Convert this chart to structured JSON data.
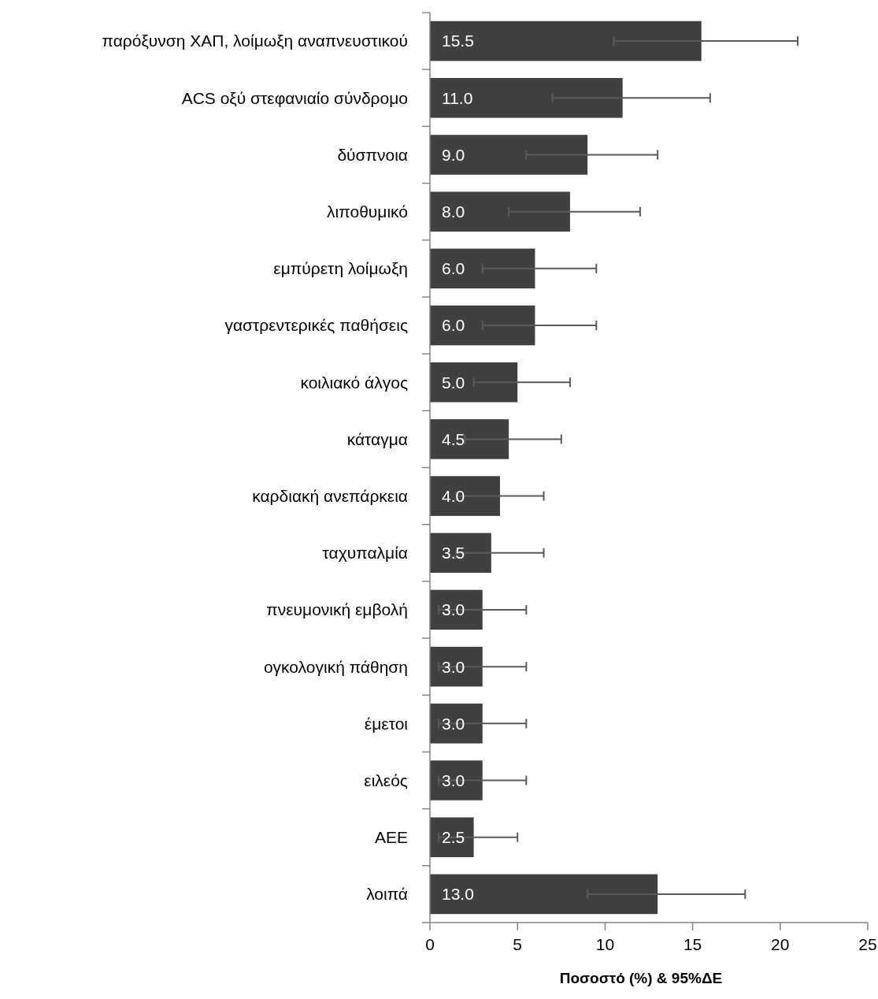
{
  "chart_data": {
    "type": "bar",
    "orientation": "horizontal",
    "xlabel": "Ποσοστό (%) & 95%ΔΕ",
    "categories": [
      "παρόξυνση ΧΑΠ, λοίμωξη αναπνευστικού",
      "ACS οξύ στεφανιαίο σύνδρομο",
      "δύσπνοια",
      "λιποθυμικό",
      "εμπύρετη λοίμωξη",
      "γαστρεντερικές παθήσεις",
      "κοιλιακό άλγος",
      "κάταγμα",
      "καρδιακή ανεπάρκεια",
      "ταχυπαλμία",
      "πνευμονική εμβολή",
      "ογκολογική πάθηση",
      "έμετοι",
      "ειλεός",
      "ΑΕΕ",
      "λοιπά"
    ],
    "values": [
      15.5,
      11.0,
      9.0,
      8.0,
      6.0,
      6.0,
      5.0,
      4.5,
      4.0,
      3.5,
      3.0,
      3.0,
      3.0,
      3.0,
      2.5,
      13.0
    ],
    "value_labels": [
      "15.5",
      "11.0",
      "9.0",
      "8.0",
      "6.0",
      "6.0",
      "5.0",
      "4.5",
      "4.0",
      "3.5",
      "3.0",
      "3.0",
      "3.0",
      "3.0",
      "2.5",
      "13.0"
    ],
    "errors": [
      [
        10.5,
        21
      ],
      [
        7,
        16
      ],
      [
        5.5,
        13
      ],
      [
        4.5,
        12
      ],
      [
        3,
        9.5
      ],
      [
        3,
        9.5
      ],
      [
        2.5,
        8
      ],
      [
        2,
        7.5
      ],
      [
        1.5,
        6.5
      ],
      [
        1.5,
        6.5
      ],
      [
        0.5,
        5.5
      ],
      [
        0.5,
        5.5
      ],
      [
        0.5,
        5.5
      ],
      [
        0.5,
        5.5
      ],
      [
        0.5,
        5
      ],
      [
        9,
        18
      ]
    ],
    "color": "#404040",
    "xlim": [
      0,
      25
    ],
    "xticks": [
      0,
      5,
      10,
      15,
      20,
      25
    ],
    "grid": false
  }
}
